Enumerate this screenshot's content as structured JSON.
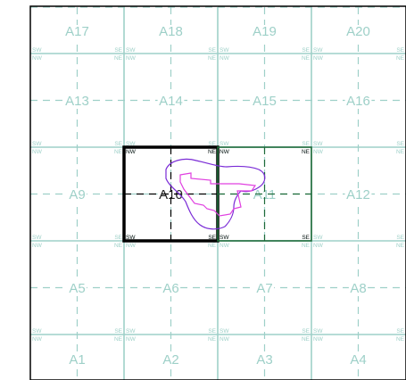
{
  "map": {
    "grid_rows": [
      [
        "A17",
        "A18",
        "A19",
        "A20"
      ],
      [
        "A13",
        "A14",
        "A15",
        "A16"
      ],
      [
        "A9",
        "A10",
        "A11",
        "A12"
      ],
      [
        "A5",
        "A6",
        "A7",
        "A8"
      ],
      [
        "A1",
        "A2",
        "A3",
        "A4"
      ]
    ],
    "corner_labels": {
      "sw": "SW",
      "se": "SE",
      "nw": "NW",
      "ne": "NE"
    },
    "selected_cells": [
      {
        "id": "A10",
        "outline": "black-thick"
      },
      {
        "id": "A11",
        "outline": "green"
      }
    ],
    "colors": {
      "grid_line": "#9ed0c8",
      "grid_text": "#9ed0c8",
      "selected_primary": "#000000",
      "selected_secondary": "#1e6b3a",
      "feature_outer": "#7a2bd6",
      "feature_inner": "#e040e0",
      "frame": "#000000"
    },
    "features": [
      {
        "name": "outer-boundary",
        "color": "#7a2bd6"
      },
      {
        "name": "inner-boundary",
        "color": "#e040e0"
      }
    ]
  }
}
